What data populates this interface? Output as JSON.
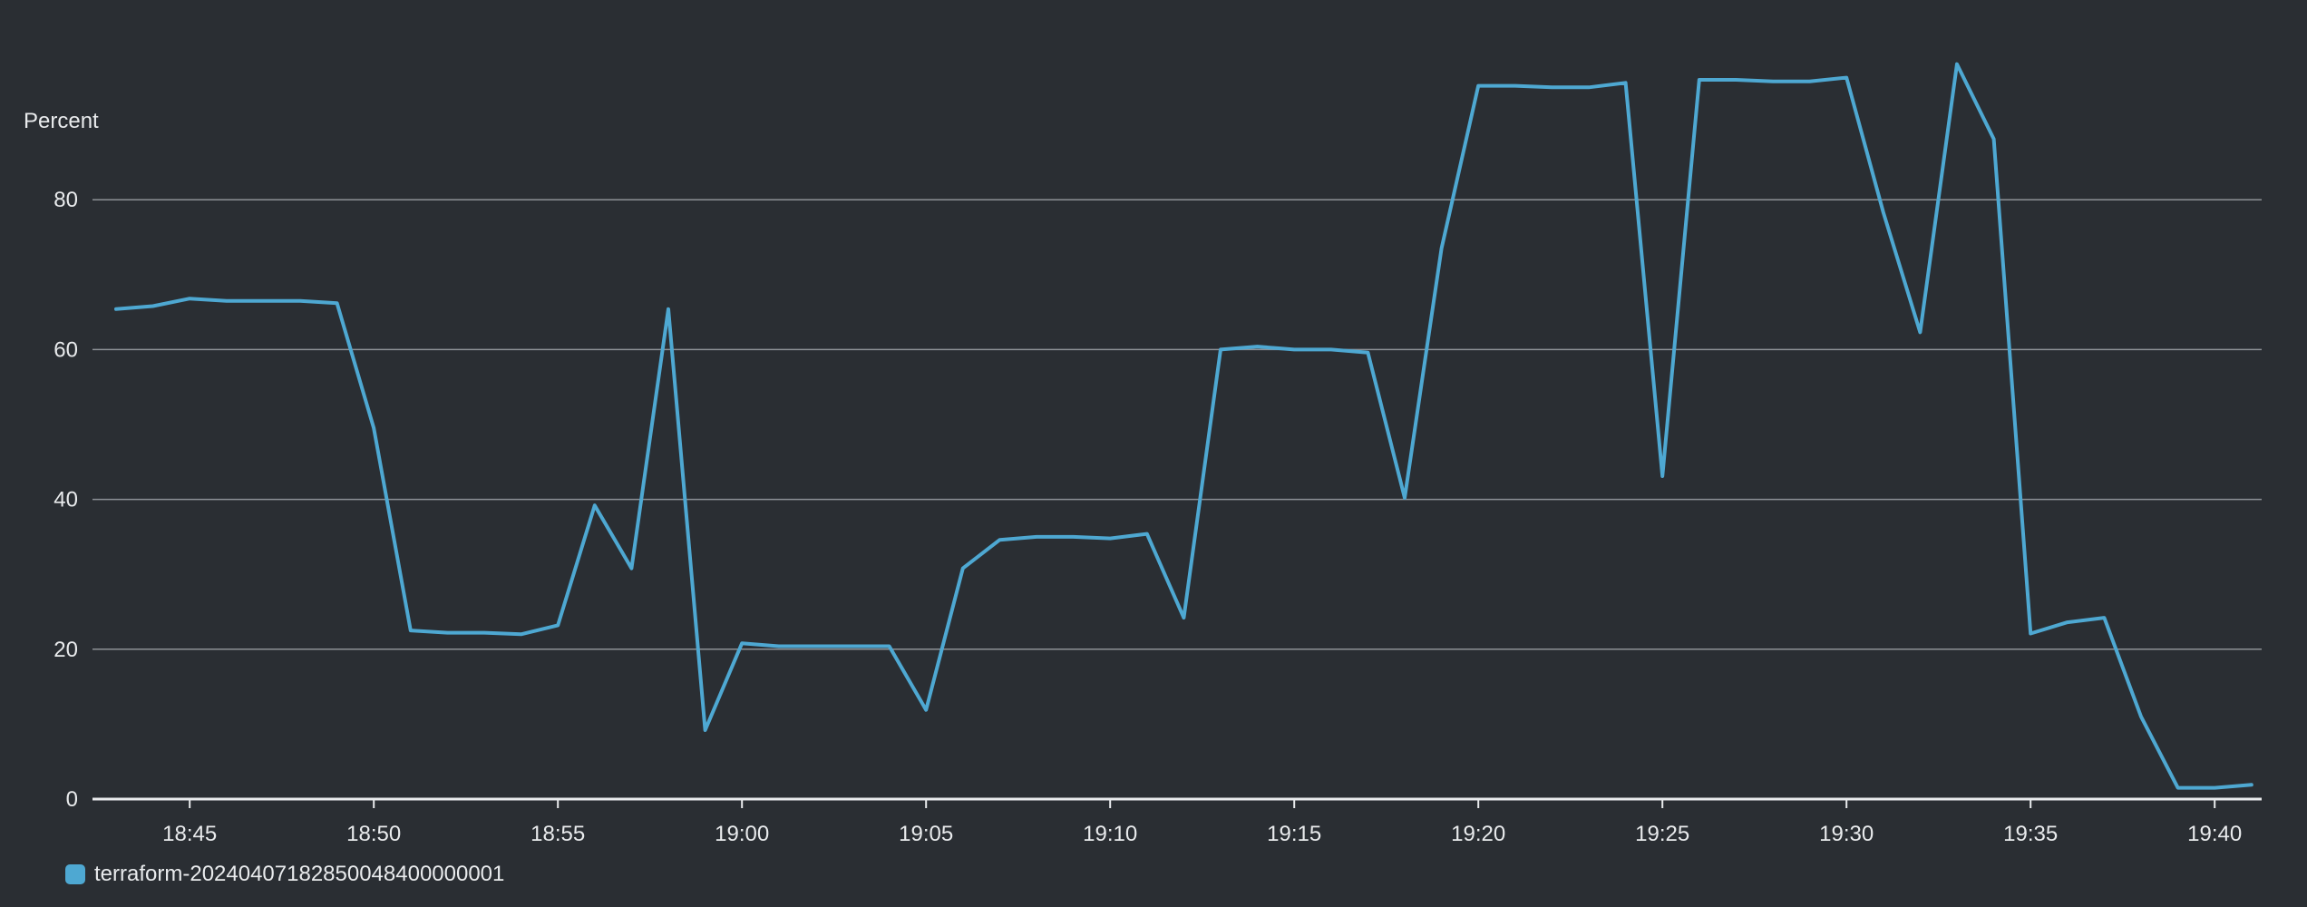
{
  "colors": {
    "background": "#2a2e33",
    "series": "#4ea8d2",
    "grid": "#8d9196",
    "axis": "#e9ebed",
    "text": "#e9ebed"
  },
  "chart_data": {
    "type": "line",
    "title": "",
    "xlabel": "",
    "ylabel": "Percent",
    "ylim": [
      0,
      100
    ],
    "yticks": [
      0,
      20,
      40,
      60,
      80
    ],
    "xticks": [
      "18:45",
      "18:50",
      "18:55",
      "19:00",
      "19:05",
      "19:10",
      "19:15",
      "19:20",
      "19:25",
      "19:30",
      "19:35",
      "19:40"
    ],
    "grid": true,
    "legend_position": "bottom-left",
    "x": [
      "18:43",
      "18:44",
      "18:45",
      "18:46",
      "18:47",
      "18:48",
      "18:49",
      "18:50",
      "18:51",
      "18:52",
      "18:53",
      "18:54",
      "18:55",
      "18:56",
      "18:57",
      "18:58",
      "18:59",
      "19:00",
      "19:01",
      "19:02",
      "19:03",
      "19:04",
      "19:05",
      "19:06",
      "19:07",
      "19:08",
      "19:09",
      "19:10",
      "19:11",
      "19:12",
      "19:13",
      "19:14",
      "19:15",
      "19:16",
      "19:17",
      "19:18",
      "19:19",
      "19:20",
      "19:21",
      "19:22",
      "19:23",
      "19:24",
      "19:25",
      "19:26",
      "19:27",
      "19:28",
      "19:29",
      "19:30",
      "19:31",
      "19:32",
      "19:33",
      "19:34",
      "19:35",
      "19:36",
      "19:37",
      "19:38",
      "19:39",
      "19:40",
      "19:41"
    ],
    "series": [
      {
        "name": "terraform-20240407182850048400000001",
        "values": [
          65.4,
          65.8,
          66.8,
          66.5,
          66.5,
          66.5,
          66.2,
          49.5,
          22.5,
          22.2,
          22.2,
          22.0,
          23.2,
          39.2,
          30.8,
          65.4,
          9.2,
          20.8,
          20.4,
          20.4,
          20.4,
          20.4,
          11.9,
          30.8,
          34.6,
          35.0,
          35.0,
          34.8,
          35.4,
          24.2,
          60.0,
          60.4,
          60.0,
          60.0,
          59.6,
          40.2,
          73.5,
          95.2,
          95.2,
          95.0,
          95.0,
          95.6,
          43.1,
          96.0,
          96.0,
          95.8,
          95.8,
          96.3,
          78.3,
          62.3,
          98.1,
          88.1,
          22.1,
          23.6,
          24.2,
          11.0,
          1.5,
          1.5,
          1.9
        ]
      }
    ]
  }
}
